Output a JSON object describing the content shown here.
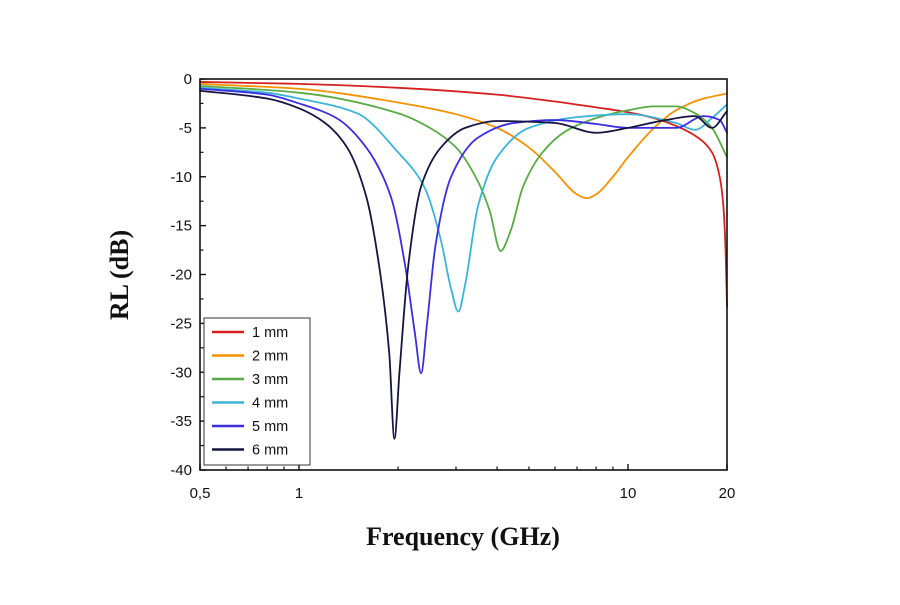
{
  "chart_data": {
    "type": "line",
    "xlabel": "Frequency (GHz)",
    "ylabel": "RL (dB)",
    "xscale": "log",
    "xlim": [
      0.5,
      20
    ],
    "ylim": [
      -40,
      0
    ],
    "xticks": [
      {
        "value": 0.5,
        "label": "0,5"
      },
      {
        "value": 1,
        "label": "1"
      },
      {
        "value": 10,
        "label": "10"
      },
      {
        "value": 20,
        "label": "20"
      }
    ],
    "yticks": [
      {
        "value": 0,
        "label": "0"
      },
      {
        "value": -5,
        "label": "-5"
      },
      {
        "value": -10,
        "label": "-10"
      },
      {
        "value": -15,
        "label": "-15"
      },
      {
        "value": -20,
        "label": "-20"
      },
      {
        "value": -25,
        "label": "-25"
      },
      {
        "value": -30,
        "label": "-30"
      },
      {
        "value": -35,
        "label": "-35"
      },
      {
        "value": -40,
        "label": "-40"
      }
    ],
    "grid": false,
    "legend_position": "bottom-left",
    "series": [
      {
        "name": "1 mm",
        "color": "#d42020",
        "x": [
          0.5,
          1,
          2,
          4,
          6,
          8,
          10,
          12,
          14,
          16,
          18,
          19,
          19.5,
          19.8,
          20
        ],
        "y": [
          -0.3,
          -0.5,
          -0.9,
          -1.6,
          -2.3,
          -2.9,
          -3.4,
          -4.0,
          -4.8,
          -5.8,
          -7.5,
          -10.0,
          -13.0,
          -17.5,
          -23.3
        ]
      },
      {
        "name": "2 mm",
        "color": "#f39200",
        "x": [
          0.5,
          1,
          2,
          3,
          4,
          5,
          6,
          7,
          7.5,
          8,
          9,
          10,
          12,
          14,
          17,
          20
        ],
        "y": [
          -0.5,
          -1.0,
          -2.4,
          -3.6,
          -5.0,
          -7.0,
          -9.5,
          -11.8,
          -12.2,
          -11.8,
          -10.0,
          -8.0,
          -5.0,
          -3.2,
          -2.0,
          -1.5
        ]
      },
      {
        "name": "3 mm",
        "color": "#5aab46",
        "x": [
          0.5,
          1,
          2,
          2.5,
          3,
          3.5,
          3.8,
          4.1,
          4.4,
          4.8,
          5.5,
          6.5,
          8,
          10,
          12,
          14,
          16,
          18,
          20
        ],
        "y": [
          -0.7,
          -1.4,
          -3.5,
          -5.0,
          -7.0,
          -10.5,
          -13.5,
          -17.6,
          -15.5,
          -11.0,
          -7.5,
          -5.3,
          -4.0,
          -3.2,
          -2.8,
          -2.8,
          -3.5,
          -5.0,
          -8.0
        ]
      },
      {
        "name": "4 mm",
        "color": "#3bb4d8",
        "x": [
          0.5,
          0.8,
          1,
          1.5,
          2,
          2.4,
          2.7,
          2.9,
          3.05,
          3.2,
          3.5,
          4,
          5,
          7,
          10,
          14,
          16,
          18,
          20
        ],
        "y": [
          -0.9,
          -1.4,
          -2.0,
          -3.5,
          -7.5,
          -11.0,
          -16.5,
          -21.5,
          -23.8,
          -21.0,
          -13.0,
          -8.0,
          -5.0,
          -3.9,
          -3.6,
          -4.5,
          -5.2,
          -4.0,
          -2.6
        ]
      },
      {
        "name": "5 mm",
        "color": "#3a2ee0",
        "x": [
          0.5,
          0.8,
          1,
          1.3,
          1.6,
          1.9,
          2.1,
          2.25,
          2.35,
          2.45,
          2.6,
          2.9,
          3.5,
          4.5,
          6,
          8,
          10,
          14,
          17,
          19,
          20
        ],
        "y": [
          -1.0,
          -1.6,
          -2.5,
          -4.0,
          -7.0,
          -12.0,
          -19.0,
          -26.0,
          -30.1,
          -25.0,
          -17.0,
          -10.0,
          -6.0,
          -4.5,
          -4.2,
          -4.6,
          -5.0,
          -5.0,
          -3.8,
          -4.2,
          -5.5
        ]
      },
      {
        "name": "6 mm",
        "color": "#15153f",
        "x": [
          0.5,
          0.8,
          1,
          1.2,
          1.4,
          1.6,
          1.75,
          1.88,
          1.95,
          2.02,
          2.15,
          2.35,
          2.7,
          3.2,
          4,
          6,
          8,
          10,
          13,
          16,
          18,
          20
        ],
        "y": [
          -1.2,
          -2.0,
          -3.0,
          -4.5,
          -7.0,
          -12.0,
          -19.0,
          -28.0,
          -36.8,
          -30.0,
          -19.0,
          -11.0,
          -7.0,
          -5.0,
          -4.3,
          -4.5,
          -5.5,
          -5.0,
          -4.2,
          -3.8,
          -5.0,
          -3.3
        ]
      }
    ]
  }
}
